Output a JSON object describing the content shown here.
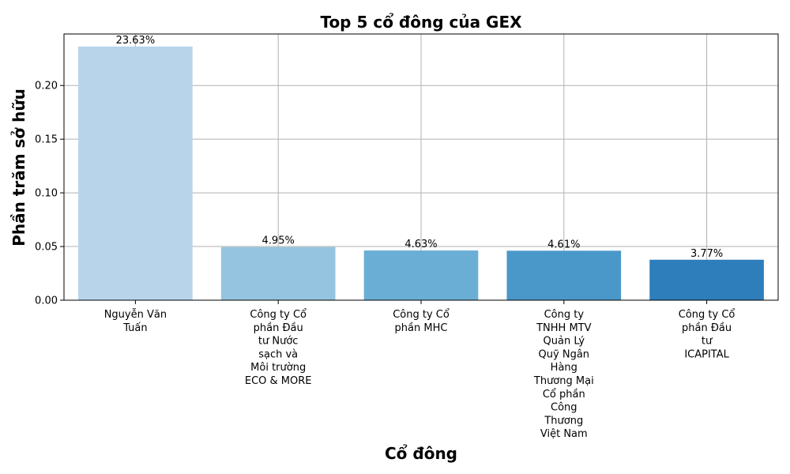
{
  "chart_data": {
    "type": "bar",
    "title": "Top 5 cổ đông của GEX",
    "xlabel": "Cổ đông",
    "ylabel": "Phần trăm sở hữu",
    "categories": [
      "Nguyễn Văn Tuấn",
      "Công ty Cổ phần Đầu tư Nước sạch và Môi trường ECO & MORE",
      "Công ty Cổ phần MHC",
      "Công ty TNHH MTV Quản Lý Quỹ Ngân Hàng Thương Mại Cổ phần Công Thương Việt Nam",
      "Công ty Cổ phần Đầu tư ICAPITAL"
    ],
    "category_lines": [
      [
        "Nguyễn Văn",
        "Tuấn"
      ],
      [
        "Công ty Cổ",
        "phần Đầu",
        "tư Nước",
        "sạch và",
        "Môi trường",
        "ECO & MORE"
      ],
      [
        "Công ty Cổ",
        "phần MHC"
      ],
      [
        "Công ty",
        "TNHH MTV",
        "Quản Lý",
        "Quỹ Ngân",
        "Hàng",
        "Thương Mại",
        "Cổ phần",
        "Công",
        "Thương",
        "Việt Nam"
      ],
      [
        "Công ty Cổ",
        "phần Đầu",
        "tư",
        "ICAPITAL"
      ]
    ],
    "values": [
      0.2363,
      0.0495,
      0.0463,
      0.0461,
      0.0377
    ],
    "value_labels": [
      "23.63%",
      "4.95%",
      "4.63%",
      "4.61%",
      "3.77%"
    ],
    "colors": [
      "#b7d4ea",
      "#94c4df",
      "#6aaed6",
      "#4a98c9",
      "#2e7ebc"
    ],
    "ylim": [
      0,
      0.248
    ],
    "yticks": [
      0.0,
      0.05,
      0.1,
      0.15,
      0.2
    ],
    "ytick_labels": [
      "0.00",
      "0.05",
      "0.10",
      "0.15",
      "0.20"
    ],
    "grid": true,
    "grid_color": "#b0b0b0"
  }
}
